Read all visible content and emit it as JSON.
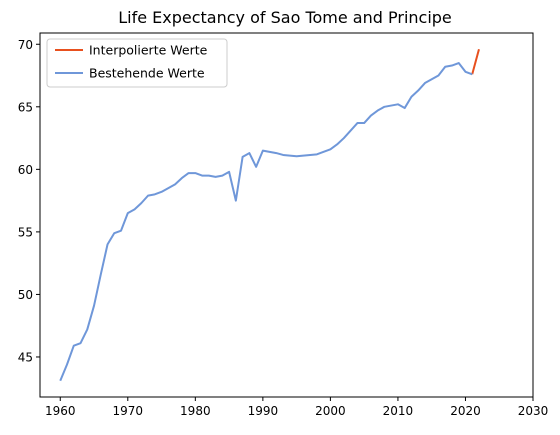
{
  "chart_data": {
    "type": "line",
    "title": "Life Expectancy of Sao Tome and Principe",
    "xlabel": "",
    "ylabel": "",
    "xlim": [
      1957,
      2030
    ],
    "ylim": [
      41.8,
      70.9
    ],
    "xticks": [
      1960,
      1970,
      1980,
      1990,
      2000,
      2010,
      2020,
      2030
    ],
    "yticks": [
      45,
      50,
      55,
      60,
      65,
      70
    ],
    "grid": false,
    "legend_position": "top-left",
    "series": [
      {
        "name": "Interpolierte Werte",
        "color": "#e8501e",
        "x": [
          2021,
          2022
        ],
        "y": [
          67.6,
          69.6
        ]
      },
      {
        "name": "Bestehende Werte",
        "color": "#6f97d9",
        "x": [
          1960,
          1961,
          1962,
          1963,
          1964,
          1965,
          1966,
          1967,
          1968,
          1969,
          1970,
          1971,
          1972,
          1973,
          1974,
          1975,
          1976,
          1977,
          1978,
          1979,
          1980,
          1981,
          1982,
          1983,
          1984,
          1985,
          1986,
          1987,
          1988,
          1989,
          1990,
          1991,
          1992,
          1993,
          1994,
          1995,
          1996,
          1997,
          1998,
          1999,
          2000,
          2001,
          2002,
          2003,
          2004,
          2005,
          2006,
          2007,
          2008,
          2009,
          2010,
          2011,
          2012,
          2013,
          2014,
          2015,
          2016,
          2017,
          2018,
          2019,
          2020,
          2021
        ],
        "y": [
          43.1,
          44.4,
          45.9,
          46.1,
          47.2,
          49.1,
          51.6,
          54.0,
          54.9,
          55.1,
          56.5,
          56.8,
          57.3,
          57.9,
          58.0,
          58.2,
          58.5,
          58.8,
          59.3,
          59.7,
          59.7,
          59.5,
          59.5,
          59.4,
          59.5,
          59.8,
          57.5,
          61.0,
          61.3,
          60.2,
          61.5,
          61.4,
          61.3,
          61.15,
          61.1,
          61.05,
          61.1,
          61.15,
          61.2,
          61.4,
          61.6,
          62.0,
          62.5,
          63.1,
          63.7,
          63.7,
          64.3,
          64.7,
          65.0,
          65.1,
          65.2,
          64.9,
          65.8,
          66.3,
          66.9,
          67.2,
          67.5,
          68.2,
          68.3,
          68.5,
          67.8,
          67.6
        ]
      }
    ]
  }
}
